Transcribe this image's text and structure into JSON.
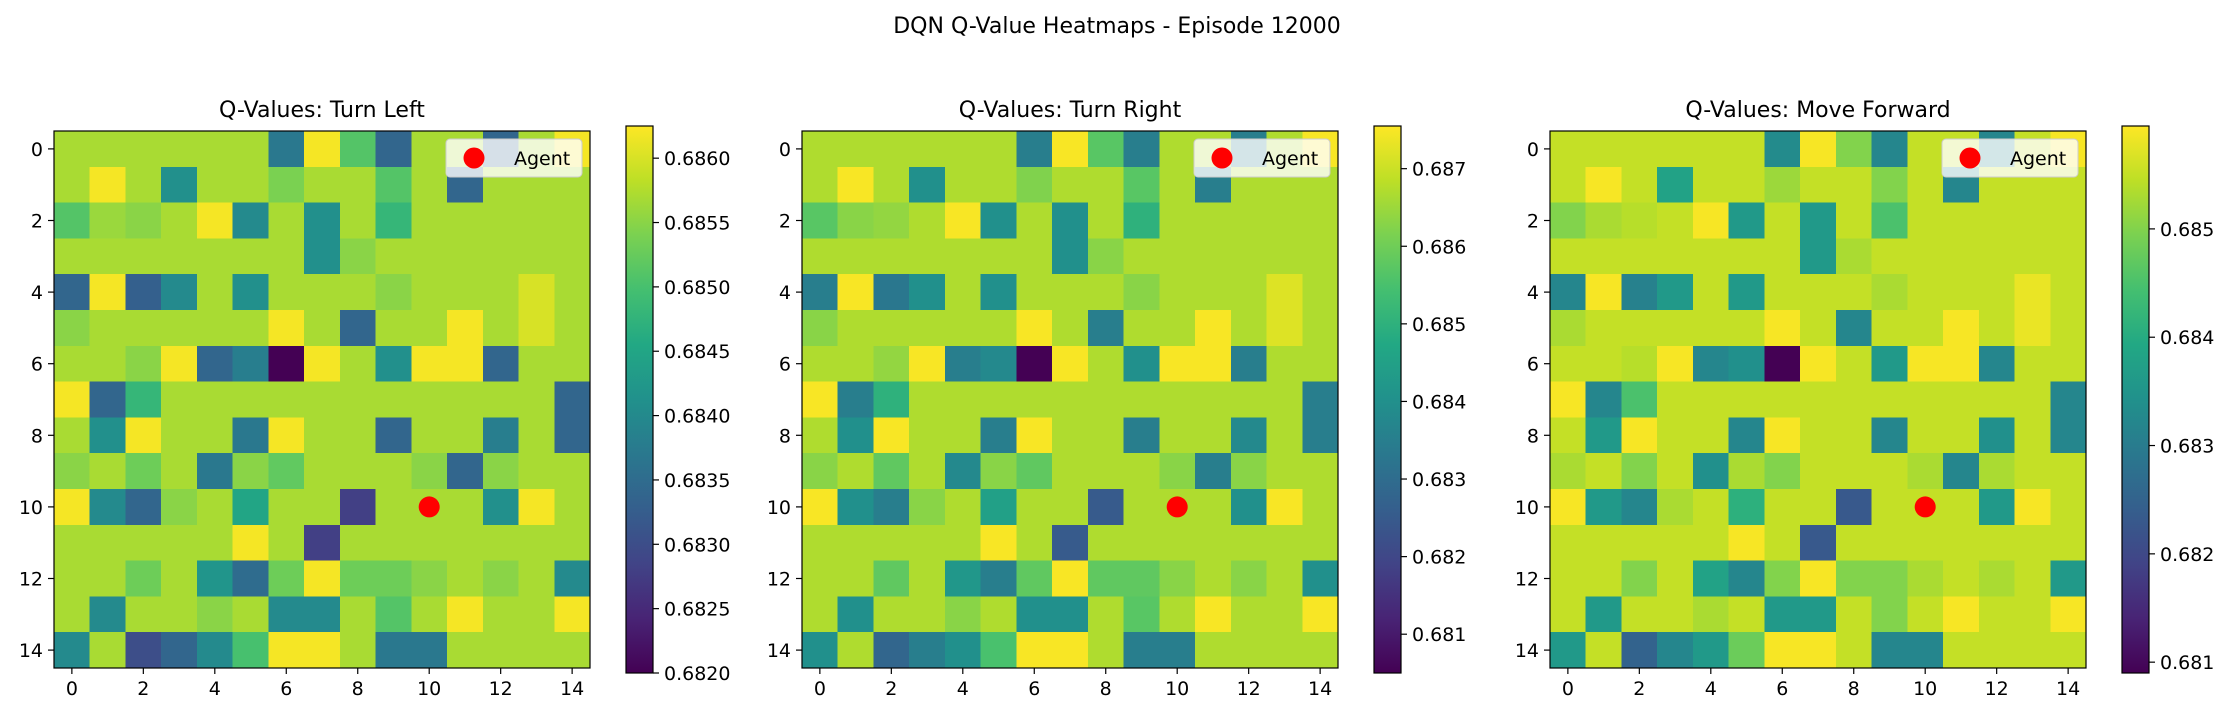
{
  "figure": {
    "suptitle": "DQN Q-Value Heatmaps - Episode 12000"
  },
  "colors": {
    "viridis": [
      "#440154",
      "#482475",
      "#414487",
      "#355f8d",
      "#2a788e",
      "#21918c",
      "#22a884",
      "#44bf70",
      "#7ad151",
      "#bddf26",
      "#fde725"
    ],
    "agent": "#ff0000",
    "legend_bg": "#ffffff",
    "legend_border": "#cccccc",
    "axis": "#000000"
  },
  "chart_data": [
    {
      "type": "heatmap",
      "title": "Q-Values: Turn Left",
      "x_ticks": [
        "0",
        "2",
        "4",
        "6",
        "8",
        "10",
        "12",
        "14"
      ],
      "y_ticks": [
        "0",
        "2",
        "4",
        "6",
        "8",
        "10",
        "12",
        "14"
      ],
      "vmin": 0.682,
      "vmax": 0.68625,
      "colorbar_ticks": [
        "0.6820",
        "0.6825",
        "0.6830",
        "0.6835",
        "0.6840",
        "0.6845",
        "0.6850",
        "0.6855",
        "0.6860"
      ],
      "legend": {
        "label": "Agent",
        "location": "upper right"
      },
      "agent": {
        "x": 10,
        "y": 10
      },
      "grid": [
        [
          0.6857,
          0.6857,
          0.6857,
          0.6857,
          0.6857,
          0.6857,
          0.6837,
          0.6862,
          0.6851,
          0.6834,
          0.6857,
          0.6857,
          0.6834,
          0.6857,
          0.6862
        ],
        [
          0.6857,
          0.6862,
          0.6857,
          0.6841,
          0.6857,
          0.6857,
          0.6854,
          0.6857,
          0.6857,
          0.6851,
          0.6857,
          0.6834,
          0.6857,
          0.6857,
          0.6857
        ],
        [
          0.6851,
          0.6856,
          0.6855,
          0.6857,
          0.6862,
          0.684,
          0.6857,
          0.6841,
          0.6857,
          0.6848,
          0.6857,
          0.6857,
          0.6857,
          0.6857,
          0.6857
        ],
        [
          0.6857,
          0.6857,
          0.6857,
          0.6857,
          0.6857,
          0.6857,
          0.6857,
          0.6841,
          0.6855,
          0.6857,
          0.6857,
          0.6857,
          0.6857,
          0.6857,
          0.6857
        ],
        [
          0.6834,
          0.6862,
          0.6833,
          0.684,
          0.6857,
          0.6841,
          0.6857,
          0.6857,
          0.6857,
          0.6855,
          0.6857,
          0.6857,
          0.6857,
          0.686,
          0.6857
        ],
        [
          0.6855,
          0.6857,
          0.6857,
          0.6857,
          0.6857,
          0.6857,
          0.6862,
          0.6857,
          0.6834,
          0.6857,
          0.6857,
          0.6862,
          0.6857,
          0.686,
          0.6857
        ],
        [
          0.6857,
          0.6857,
          0.6855,
          0.6862,
          0.6834,
          0.6838,
          0.682,
          0.6862,
          0.6857,
          0.6841,
          0.6862,
          0.6862,
          0.6834,
          0.6857,
          0.6857
        ],
        [
          0.6862,
          0.6834,
          0.6848,
          0.6857,
          0.6857,
          0.6857,
          0.6857,
          0.6857,
          0.6857,
          0.6857,
          0.6857,
          0.6857,
          0.6857,
          0.6857,
          0.6834
        ],
        [
          0.6857,
          0.6841,
          0.6862,
          0.6857,
          0.6857,
          0.6837,
          0.6862,
          0.6857,
          0.6857,
          0.6834,
          0.6857,
          0.6857,
          0.6838,
          0.6857,
          0.6834
        ],
        [
          0.6855,
          0.6857,
          0.6853,
          0.6857,
          0.6837,
          0.6855,
          0.6852,
          0.6857,
          0.6857,
          0.6857,
          0.6855,
          0.6834,
          0.6855,
          0.6857,
          0.6857
        ],
        [
          0.6862,
          0.684,
          0.6834,
          0.6855,
          0.6857,
          0.6845,
          0.6857,
          0.6857,
          0.6828,
          0.6857,
          0.6857,
          0.6857,
          0.6841,
          0.6862,
          0.6857
        ],
        [
          0.6857,
          0.6857,
          0.6857,
          0.6857,
          0.6857,
          0.6862,
          0.6857,
          0.6828,
          0.6857,
          0.6857,
          0.6857,
          0.6857,
          0.6857,
          0.6857,
          0.6857
        ],
        [
          0.6857,
          0.6857,
          0.6853,
          0.6857,
          0.6842,
          0.6835,
          0.6853,
          0.6862,
          0.6853,
          0.6853,
          0.6855,
          0.6857,
          0.6855,
          0.6857,
          0.684
        ],
        [
          0.6857,
          0.684,
          0.6857,
          0.6857,
          0.6855,
          0.6857,
          0.684,
          0.684,
          0.6857,
          0.6851,
          0.6857,
          0.6862,
          0.6857,
          0.6857,
          0.6862
        ],
        [
          0.684,
          0.6857,
          0.683,
          0.6834,
          0.684,
          0.685,
          0.6862,
          0.6862,
          0.6857,
          0.6837,
          0.6837,
          0.6857,
          0.6857,
          0.6857,
          0.6857
        ]
      ]
    },
    {
      "type": "heatmap",
      "title": "Q-Values: Turn Right",
      "x_ticks": [
        "0",
        "2",
        "4",
        "6",
        "8",
        "10",
        "12",
        "14"
      ],
      "y_ticks": [
        "0",
        "2",
        "4",
        "6",
        "8",
        "10",
        "12",
        "14"
      ],
      "vmin": 0.6805,
      "vmax": 0.68755,
      "colorbar_ticks": [
        "0.681",
        "0.682",
        "0.683",
        "0.684",
        "0.685",
        "0.686",
        "0.687"
      ],
      "legend": {
        "label": "Agent",
        "location": "upper right"
      },
      "agent": {
        "x": 10,
        "y": 10
      },
      "grid": [
        [
          0.6867,
          0.6867,
          0.6867,
          0.6867,
          0.6867,
          0.6867,
          0.6835,
          0.6875,
          0.6857,
          0.6835,
          0.6867,
          0.6867,
          0.6835,
          0.6867,
          0.6875
        ],
        [
          0.6867,
          0.6875,
          0.6867,
          0.684,
          0.6867,
          0.6867,
          0.6862,
          0.6867,
          0.6867,
          0.6857,
          0.6867,
          0.6835,
          0.6867,
          0.6867,
          0.6867
        ],
        [
          0.6857,
          0.6863,
          0.6864,
          0.6867,
          0.6875,
          0.684,
          0.6867,
          0.684,
          0.6867,
          0.685,
          0.6867,
          0.6867,
          0.6867,
          0.6867,
          0.6867
        ],
        [
          0.6867,
          0.6867,
          0.6867,
          0.6867,
          0.6867,
          0.6867,
          0.6867,
          0.684,
          0.6863,
          0.6867,
          0.6867,
          0.6867,
          0.6867,
          0.6867,
          0.6867
        ],
        [
          0.6835,
          0.6875,
          0.6833,
          0.684,
          0.6867,
          0.684,
          0.6867,
          0.6867,
          0.6867,
          0.6863,
          0.6867,
          0.6867,
          0.6867,
          0.6872,
          0.6867
        ],
        [
          0.6863,
          0.6867,
          0.6867,
          0.6867,
          0.6867,
          0.6867,
          0.6875,
          0.6867,
          0.6835,
          0.6867,
          0.6867,
          0.6875,
          0.6867,
          0.6872,
          0.6867
        ],
        [
          0.6867,
          0.6867,
          0.6864,
          0.6875,
          0.6835,
          0.6838,
          0.6805,
          0.6875,
          0.6867,
          0.684,
          0.6875,
          0.6875,
          0.6835,
          0.6867,
          0.6867
        ],
        [
          0.6875,
          0.6835,
          0.685,
          0.6867,
          0.6867,
          0.6867,
          0.6867,
          0.6867,
          0.6867,
          0.6867,
          0.6867,
          0.6867,
          0.6867,
          0.6867,
          0.6835
        ],
        [
          0.6867,
          0.684,
          0.6875,
          0.6867,
          0.6867,
          0.6835,
          0.6875,
          0.6867,
          0.6867,
          0.6835,
          0.6867,
          0.6867,
          0.6838,
          0.6867,
          0.6835
        ],
        [
          0.6863,
          0.6867,
          0.6858,
          0.6867,
          0.6838,
          0.6863,
          0.6858,
          0.6867,
          0.6867,
          0.6867,
          0.6863,
          0.6835,
          0.6863,
          0.6867,
          0.6867
        ],
        [
          0.6875,
          0.684,
          0.6835,
          0.6863,
          0.6867,
          0.6845,
          0.6867,
          0.6867,
          0.6825,
          0.6867,
          0.6867,
          0.6867,
          0.684,
          0.6875,
          0.6867
        ],
        [
          0.6867,
          0.6867,
          0.6867,
          0.6867,
          0.6867,
          0.6875,
          0.6867,
          0.6825,
          0.6867,
          0.6867,
          0.6867,
          0.6867,
          0.6867,
          0.6867,
          0.6867
        ],
        [
          0.6867,
          0.6867,
          0.6858,
          0.6867,
          0.6842,
          0.6835,
          0.6858,
          0.6875,
          0.6858,
          0.6858,
          0.6863,
          0.6867,
          0.6863,
          0.6867,
          0.684
        ],
        [
          0.6867,
          0.684,
          0.6867,
          0.6867,
          0.6863,
          0.6867,
          0.684,
          0.684,
          0.6867,
          0.6857,
          0.6867,
          0.6875,
          0.6867,
          0.6867,
          0.6875
        ],
        [
          0.684,
          0.6867,
          0.6828,
          0.6835,
          0.684,
          0.6855,
          0.6875,
          0.6875,
          0.6867,
          0.6835,
          0.6835,
          0.6867,
          0.6867,
          0.6867,
          0.6867
        ]
      ]
    },
    {
      "type": "heatmap",
      "title": "Q-Values: Move Forward",
      "x_ticks": [
        "0",
        "2",
        "4",
        "6",
        "8",
        "10",
        "12",
        "14"
      ],
      "y_ticks": [
        "0",
        "2",
        "4",
        "6",
        "8",
        "10",
        "12",
        "14"
      ],
      "vmin": 0.6809,
      "vmax": 0.68595,
      "colorbar_ticks": [
        "0.681",
        "0.682",
        "0.683",
        "0.684",
        "0.685"
      ],
      "legend": {
        "label": "Agent",
        "location": "upper right"
      },
      "agent": {
        "x": 10,
        "y": 10
      },
      "grid": [
        [
          0.6855,
          0.6855,
          0.6855,
          0.6855,
          0.6855,
          0.6855,
          0.6833,
          0.6859,
          0.685,
          0.6832,
          0.6855,
          0.6855,
          0.6832,
          0.6855,
          0.6859
        ],
        [
          0.6855,
          0.6859,
          0.6855,
          0.6838,
          0.6855,
          0.6855,
          0.6852,
          0.6855,
          0.6855,
          0.685,
          0.6855,
          0.6832,
          0.6855,
          0.6855,
          0.6855
        ],
        [
          0.685,
          0.6853,
          0.6854,
          0.6855,
          0.6859,
          0.6836,
          0.6855,
          0.6836,
          0.6855,
          0.6845,
          0.6855,
          0.6855,
          0.6855,
          0.6855,
          0.6855
        ],
        [
          0.6855,
          0.6855,
          0.6855,
          0.6855,
          0.6855,
          0.6855,
          0.6855,
          0.6836,
          0.6853,
          0.6855,
          0.6855,
          0.6855,
          0.6855,
          0.6855,
          0.6855
        ],
        [
          0.6832,
          0.6859,
          0.6831,
          0.6836,
          0.6855,
          0.6836,
          0.6855,
          0.6855,
          0.6855,
          0.6853,
          0.6855,
          0.6855,
          0.6855,
          0.6858,
          0.6855
        ],
        [
          0.6853,
          0.6855,
          0.6855,
          0.6855,
          0.6855,
          0.6855,
          0.6859,
          0.6855,
          0.6832,
          0.6855,
          0.6855,
          0.6859,
          0.6855,
          0.6858,
          0.6855
        ],
        [
          0.6855,
          0.6855,
          0.6854,
          0.6859,
          0.6832,
          0.6834,
          0.6809,
          0.6859,
          0.6855,
          0.6836,
          0.6859,
          0.6859,
          0.6832,
          0.6855,
          0.6855
        ],
        [
          0.6859,
          0.6832,
          0.6845,
          0.6855,
          0.6855,
          0.6855,
          0.6855,
          0.6855,
          0.6855,
          0.6855,
          0.6855,
          0.6855,
          0.6855,
          0.6855,
          0.6832
        ],
        [
          0.6855,
          0.6836,
          0.6859,
          0.6855,
          0.6855,
          0.6832,
          0.6859,
          0.6855,
          0.6855,
          0.6832,
          0.6855,
          0.6855,
          0.6834,
          0.6855,
          0.6832
        ],
        [
          0.6853,
          0.6855,
          0.685,
          0.6855,
          0.6834,
          0.6853,
          0.685,
          0.6855,
          0.6855,
          0.6855,
          0.6853,
          0.6832,
          0.6853,
          0.6855,
          0.6855
        ],
        [
          0.6859,
          0.6836,
          0.6832,
          0.6853,
          0.6855,
          0.6841,
          0.6855,
          0.6855,
          0.6823,
          0.6855,
          0.6855,
          0.6855,
          0.6836,
          0.6859,
          0.6855
        ],
        [
          0.6855,
          0.6855,
          0.6855,
          0.6855,
          0.6855,
          0.6859,
          0.6855,
          0.6823,
          0.6855,
          0.6855,
          0.6855,
          0.6855,
          0.6855,
          0.6855,
          0.6855
        ],
        [
          0.6855,
          0.6855,
          0.685,
          0.6855,
          0.6838,
          0.6832,
          0.685,
          0.6859,
          0.685,
          0.685,
          0.6853,
          0.6855,
          0.6853,
          0.6855,
          0.6836
        ],
        [
          0.6855,
          0.6836,
          0.6855,
          0.6855,
          0.6853,
          0.6855,
          0.6836,
          0.6836,
          0.6855,
          0.685,
          0.6855,
          0.6859,
          0.6855,
          0.6855,
          0.6859
        ],
        [
          0.6836,
          0.6855,
          0.6825,
          0.6832,
          0.6836,
          0.6848,
          0.6859,
          0.6859,
          0.6855,
          0.6832,
          0.6832,
          0.6855,
          0.6855,
          0.6855,
          0.6855
        ]
      ]
    }
  ]
}
